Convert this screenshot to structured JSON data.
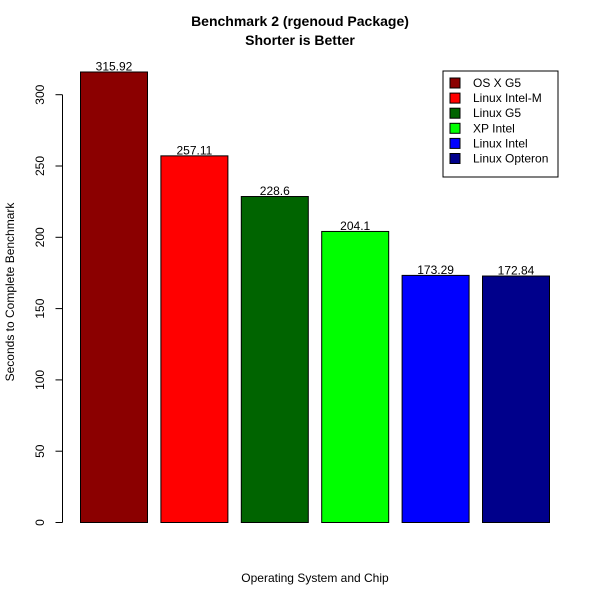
{
  "chart_data": {
    "type": "bar",
    "title": "Benchmark 2 (rgenoud Package)",
    "subtitle": "Shorter is Better",
    "xlabel": "Operating System and Chip",
    "ylabel": "Seconds to Complete Benchmark",
    "ylim": [
      0,
      330
    ],
    "yticks": [
      0,
      50,
      100,
      150,
      200,
      250,
      300
    ],
    "categories": [
      "OS X G5",
      "Linux Intel-M",
      "Linux G5",
      "XP Intel",
      "Linux Intel",
      "Linux Opteron"
    ],
    "values": [
      315.92,
      257.11,
      228.6,
      204.1,
      173.29,
      172.84
    ],
    "value_labels": [
      "315.92",
      "257.11",
      "228.6",
      "204.1",
      "173.29",
      "172.84"
    ],
    "colors": [
      "#8b0000",
      "#ff0000",
      "#006400",
      "#00ff00",
      "#0000ff",
      "#00008b"
    ],
    "legend": {
      "placement": "top-right",
      "entries": [
        "OS X G5",
        "Linux Intel-M",
        "Linux G5",
        "XP Intel",
        "Linux Intel",
        "Linux Opteron"
      ]
    },
    "grid": false
  }
}
